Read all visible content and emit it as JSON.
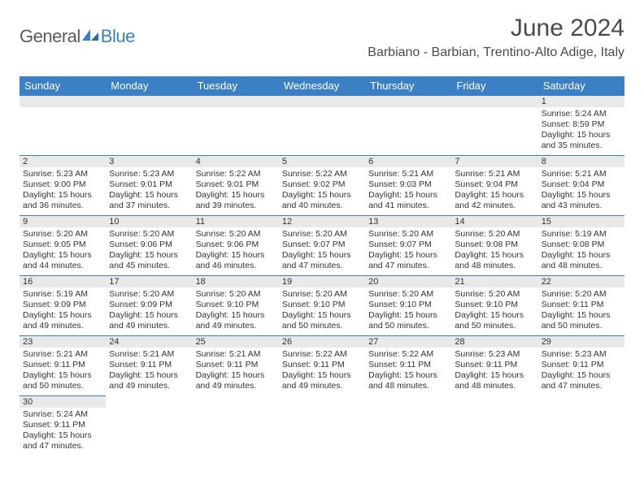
{
  "brand": {
    "part1": "General",
    "part2": "Blue"
  },
  "title": "June 2024",
  "location": "Barbiano - Barbian, Trentino-Alto Adige, Italy",
  "colors": {
    "accent": "#3b7fc4",
    "header_bg": "#3b7fc4",
    "header_text": "#ffffff",
    "daynum_bg": "#e9e9e9",
    "rule": "#3b7fc4"
  },
  "daynames": [
    "Sunday",
    "Monday",
    "Tuesday",
    "Wednesday",
    "Thursday",
    "Friday",
    "Saturday"
  ],
  "weeks": [
    [
      null,
      null,
      null,
      null,
      null,
      null,
      {
        "n": "1",
        "sunrise": "5:24 AM",
        "sunset": "8:59 PM",
        "daylight": "15 hours and 35 minutes."
      }
    ],
    [
      {
        "n": "2",
        "sunrise": "5:23 AM",
        "sunset": "9:00 PM",
        "daylight": "15 hours and 36 minutes."
      },
      {
        "n": "3",
        "sunrise": "5:23 AM",
        "sunset": "9:01 PM",
        "daylight": "15 hours and 37 minutes."
      },
      {
        "n": "4",
        "sunrise": "5:22 AM",
        "sunset": "9:01 PM",
        "daylight": "15 hours and 39 minutes."
      },
      {
        "n": "5",
        "sunrise": "5:22 AM",
        "sunset": "9:02 PM",
        "daylight": "15 hours and 40 minutes."
      },
      {
        "n": "6",
        "sunrise": "5:21 AM",
        "sunset": "9:03 PM",
        "daylight": "15 hours and 41 minutes."
      },
      {
        "n": "7",
        "sunrise": "5:21 AM",
        "sunset": "9:04 PM",
        "daylight": "15 hours and 42 minutes."
      },
      {
        "n": "8",
        "sunrise": "5:21 AM",
        "sunset": "9:04 PM",
        "daylight": "15 hours and 43 minutes."
      }
    ],
    [
      {
        "n": "9",
        "sunrise": "5:20 AM",
        "sunset": "9:05 PM",
        "daylight": "15 hours and 44 minutes."
      },
      {
        "n": "10",
        "sunrise": "5:20 AM",
        "sunset": "9:06 PM",
        "daylight": "15 hours and 45 minutes."
      },
      {
        "n": "11",
        "sunrise": "5:20 AM",
        "sunset": "9:06 PM",
        "daylight": "15 hours and 46 minutes."
      },
      {
        "n": "12",
        "sunrise": "5:20 AM",
        "sunset": "9:07 PM",
        "daylight": "15 hours and 47 minutes."
      },
      {
        "n": "13",
        "sunrise": "5:20 AM",
        "sunset": "9:07 PM",
        "daylight": "15 hours and 47 minutes."
      },
      {
        "n": "14",
        "sunrise": "5:20 AM",
        "sunset": "9:08 PM",
        "daylight": "15 hours and 48 minutes."
      },
      {
        "n": "15",
        "sunrise": "5:19 AM",
        "sunset": "9:08 PM",
        "daylight": "15 hours and 48 minutes."
      }
    ],
    [
      {
        "n": "16",
        "sunrise": "5:19 AM",
        "sunset": "9:09 PM",
        "daylight": "15 hours and 49 minutes."
      },
      {
        "n": "17",
        "sunrise": "5:20 AM",
        "sunset": "9:09 PM",
        "daylight": "15 hours and 49 minutes."
      },
      {
        "n": "18",
        "sunrise": "5:20 AM",
        "sunset": "9:10 PM",
        "daylight": "15 hours and 49 minutes."
      },
      {
        "n": "19",
        "sunrise": "5:20 AM",
        "sunset": "9:10 PM",
        "daylight": "15 hours and 50 minutes."
      },
      {
        "n": "20",
        "sunrise": "5:20 AM",
        "sunset": "9:10 PM",
        "daylight": "15 hours and 50 minutes."
      },
      {
        "n": "21",
        "sunrise": "5:20 AM",
        "sunset": "9:10 PM",
        "daylight": "15 hours and 50 minutes."
      },
      {
        "n": "22",
        "sunrise": "5:20 AM",
        "sunset": "9:11 PM",
        "daylight": "15 hours and 50 minutes."
      }
    ],
    [
      {
        "n": "23",
        "sunrise": "5:21 AM",
        "sunset": "9:11 PM",
        "daylight": "15 hours and 50 minutes."
      },
      {
        "n": "24",
        "sunrise": "5:21 AM",
        "sunset": "9:11 PM",
        "daylight": "15 hours and 49 minutes."
      },
      {
        "n": "25",
        "sunrise": "5:21 AM",
        "sunset": "9:11 PM",
        "daylight": "15 hours and 49 minutes."
      },
      {
        "n": "26",
        "sunrise": "5:22 AM",
        "sunset": "9:11 PM",
        "daylight": "15 hours and 49 minutes."
      },
      {
        "n": "27",
        "sunrise": "5:22 AM",
        "sunset": "9:11 PM",
        "daylight": "15 hours and 48 minutes."
      },
      {
        "n": "28",
        "sunrise": "5:23 AM",
        "sunset": "9:11 PM",
        "daylight": "15 hours and 48 minutes."
      },
      {
        "n": "29",
        "sunrise": "5:23 AM",
        "sunset": "9:11 PM",
        "daylight": "15 hours and 47 minutes."
      }
    ],
    [
      {
        "n": "30",
        "sunrise": "5:24 AM",
        "sunset": "9:11 PM",
        "daylight": "15 hours and 47 minutes."
      },
      null,
      null,
      null,
      null,
      null,
      null
    ]
  ],
  "labels": {
    "sunrise": "Sunrise:",
    "sunset": "Sunset:",
    "daylight": "Daylight:"
  }
}
